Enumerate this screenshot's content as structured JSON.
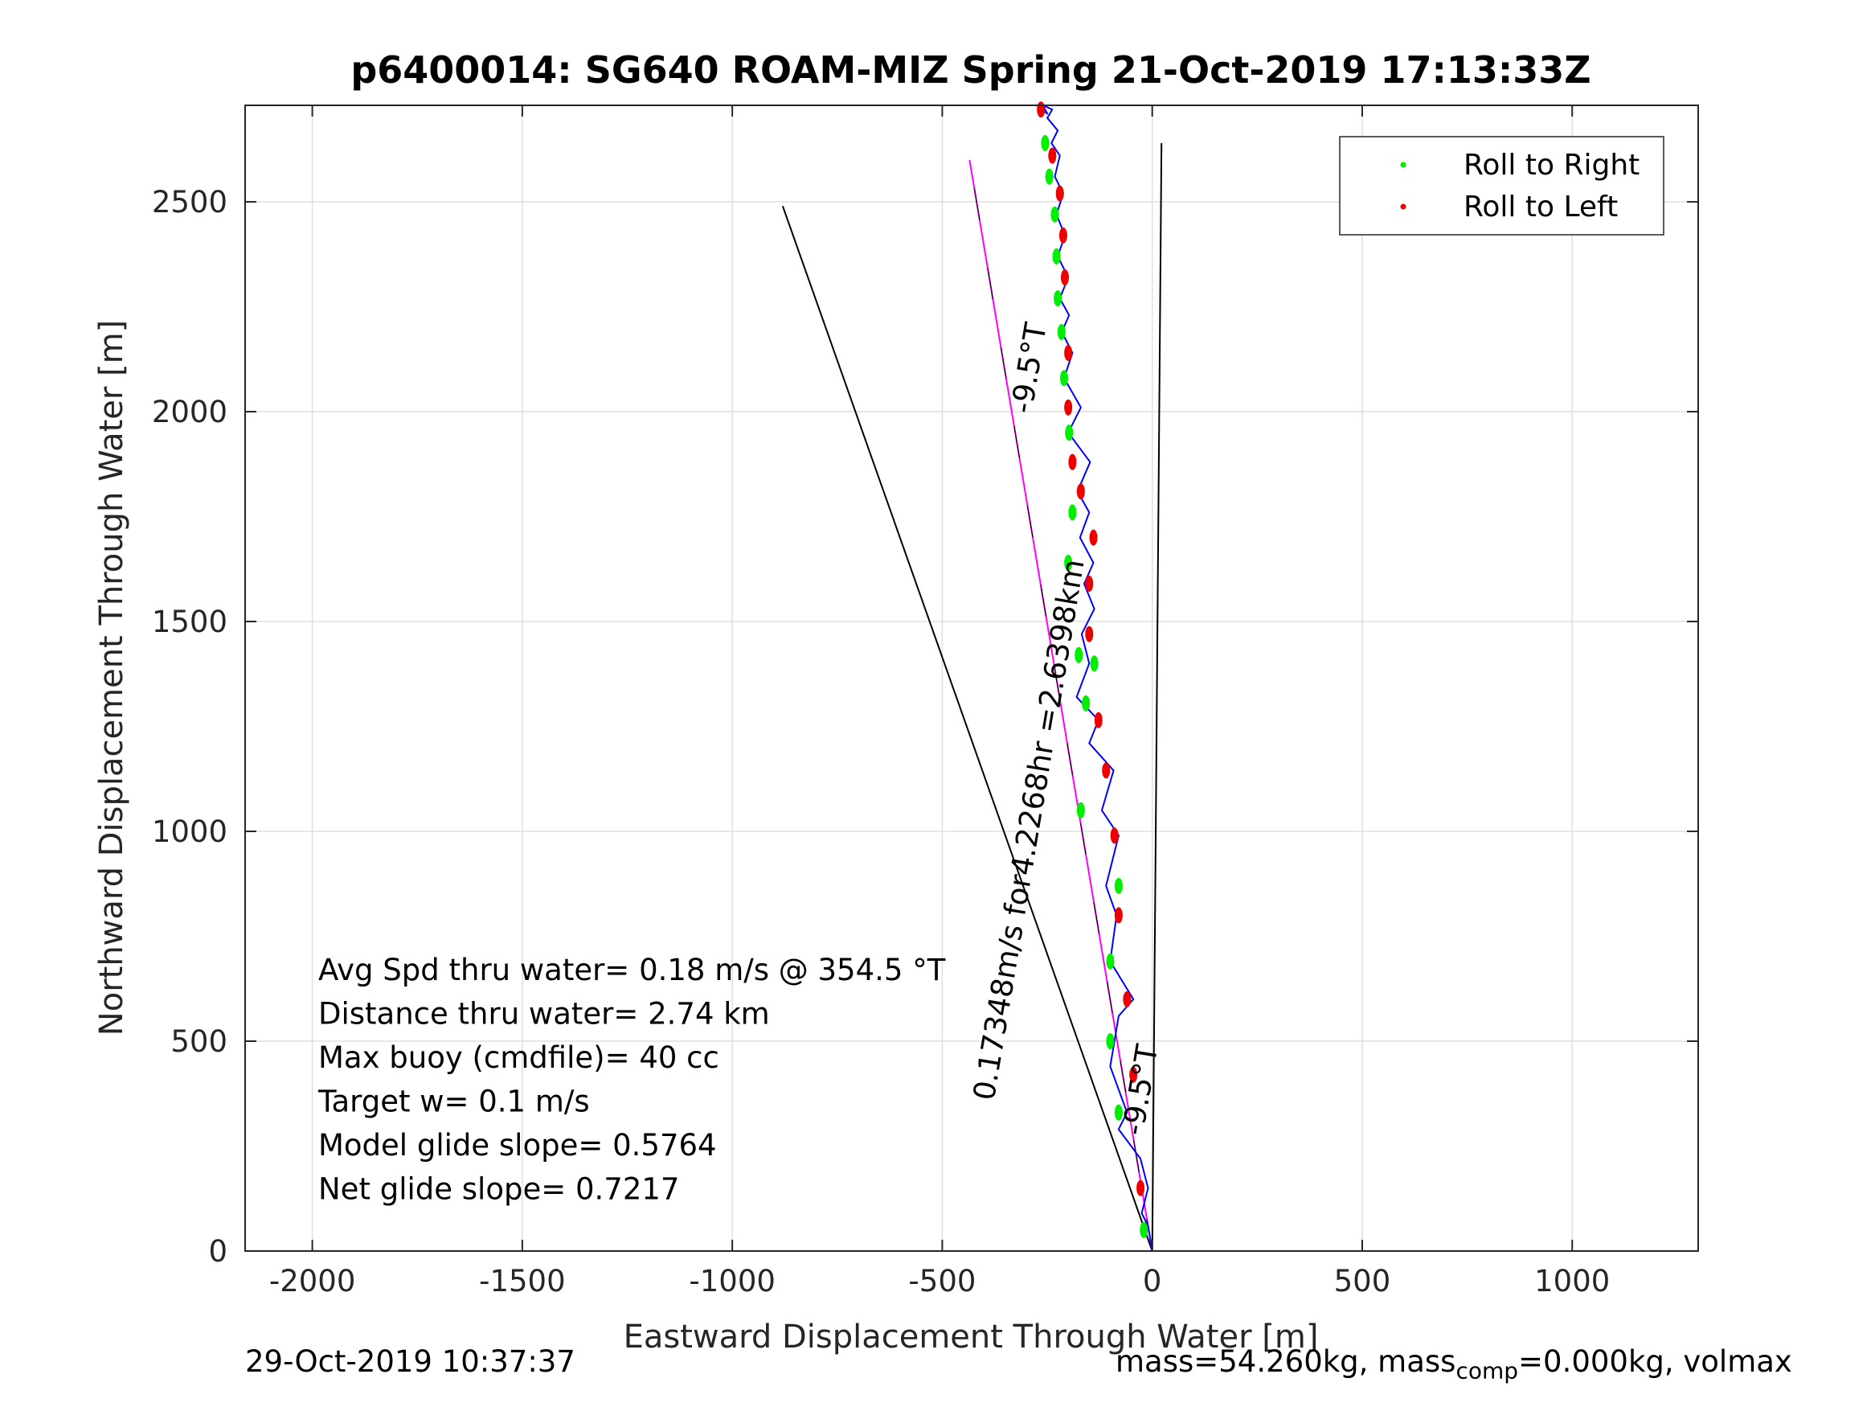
{
  "title": "p6400014: SG640 ROAM-MIZ Spring 21-Oct-2019 17:13:33Z",
  "footer": {
    "timestamp": "29-Oct-2019 10:37:37",
    "mass_text_a": "mass=54.260kg, mass",
    "mass_text_sub": "comp",
    "mass_text_b": "=0.000kg, volmax"
  },
  "chart_data": {
    "type": "line",
    "title": "p6400014: SG640 ROAM-MIZ Spring 21-Oct-2019 17:13:33Z",
    "xlabel": "Eastward Displacement Through Water [m]",
    "ylabel": "Northward Displacement Through Water [m]",
    "xlim": [
      -2160,
      1300
    ],
    "ylim": [
      0,
      2730
    ],
    "xticks": [
      -2000,
      -1500,
      -1000,
      -500,
      0,
      500,
      1000
    ],
    "yticks": [
      0,
      500,
      1000,
      1500,
      2000,
      2500
    ],
    "grid": true,
    "legend": {
      "placement": "top-right",
      "entries": [
        {
          "label": "Roll to Right",
          "color": "#00ee00"
        },
        {
          "label": "Roll to Left",
          "color": "#ee0000"
        }
      ]
    },
    "colors": {
      "track": "#0000ff",
      "heading_line": "#ff00ff",
      "reference_line": "#000000",
      "roll_right": "#00ee00",
      "roll_left": "#ee0000"
    },
    "series": [
      {
        "name": "track",
        "x": [
          0,
          -10,
          -25,
          -10,
          -28,
          -80,
          -60,
          -100,
          -90,
          -80,
          -45,
          -100,
          -85,
          -110,
          -80,
          -120,
          -92,
          -150,
          -128,
          -180,
          -150,
          -168,
          -138,
          -162,
          -140,
          -172,
          -150,
          -178,
          -148,
          -200,
          -170,
          -210,
          -190,
          -215,
          -198,
          -220,
          -200,
          -225,
          -208,
          -228,
          -212,
          -232,
          -220,
          -240,
          -225,
          -250,
          -238,
          -260,
          -250,
          -270
        ],
        "y": [
          0,
          60,
          90,
          150,
          220,
          290,
          330,
          440,
          500,
          560,
          600,
          690,
          800,
          870,
          990,
          1050,
          1145,
          1210,
          1265,
          1320,
          1400,
          1470,
          1530,
          1590,
          1640,
          1700,
          1760,
          1810,
          1880,
          1950,
          2010,
          2080,
          2140,
          2190,
          2230,
          2270,
          2320,
          2370,
          2420,
          2470,
          2520,
          2560,
          2610,
          2640,
          2670,
          2700,
          2720,
          2730,
          2710,
          2725
        ]
      },
      {
        "name": "heading",
        "x": [
          0,
          -435
        ],
        "y": [
          0,
          2600
        ]
      },
      {
        "name": "reference-left",
        "x": [
          0,
          -880
        ],
        "y": [
          0,
          2490
        ]
      },
      {
        "name": "reference-right",
        "x": [
          0,
          22
        ],
        "y": [
          0,
          2640
        ]
      }
    ],
    "roll_right_points": {
      "x": [
        -20,
        -80,
        -100,
        -100,
        -80,
        -170,
        -138,
        -158,
        -175,
        -200,
        -190,
        -198,
        -210,
        -216,
        -225,
        -228,
        -232,
        -245,
        -255
      ],
      "y": [
        50,
        330,
        500,
        690,
        870,
        1050,
        1400,
        1305,
        1420,
        1640,
        1760,
        1950,
        2080,
        2190,
        2270,
        2370,
        2470,
        2560,
        2640
      ]
    },
    "roll_left_points": {
      "x": [
        -28,
        -45,
        -60,
        -80,
        -90,
        -110,
        -128,
        -150,
        -150,
        -140,
        -170,
        -190,
        -200,
        -200,
        -208,
        -212,
        -220,
        -238,
        -265
      ],
      "y": [
        150,
        420,
        600,
        800,
        990,
        1145,
        1265,
        1470,
        1590,
        1700,
        1810,
        1880,
        2010,
        2140,
        2320,
        2420,
        2520,
        2610,
        2720
      ]
    },
    "annotations": [
      {
        "text": "-9.5°T",
        "x": -270,
        "y": 2100,
        "rotation": -80.5
      },
      {
        "text": "0.17348m/s for4.2268hr =2.6398km",
        "x": -270,
        "y": 1000,
        "rotation": -80.5
      },
      {
        "text": "-9.5°T",
        "x": -5,
        "y": 380,
        "rotation": -80.5
      }
    ],
    "stats_lines": [
      "Avg Spd thru water=  0.18 m/s @ 354.5 °T",
      "Distance thru water=  2.74 km",
      "Max buoy (cmdfile)= 40 cc",
      "Target w= 0.1 m/s",
      "Model glide slope= 0.5764",
      "Net glide slope= 0.7217"
    ]
  }
}
